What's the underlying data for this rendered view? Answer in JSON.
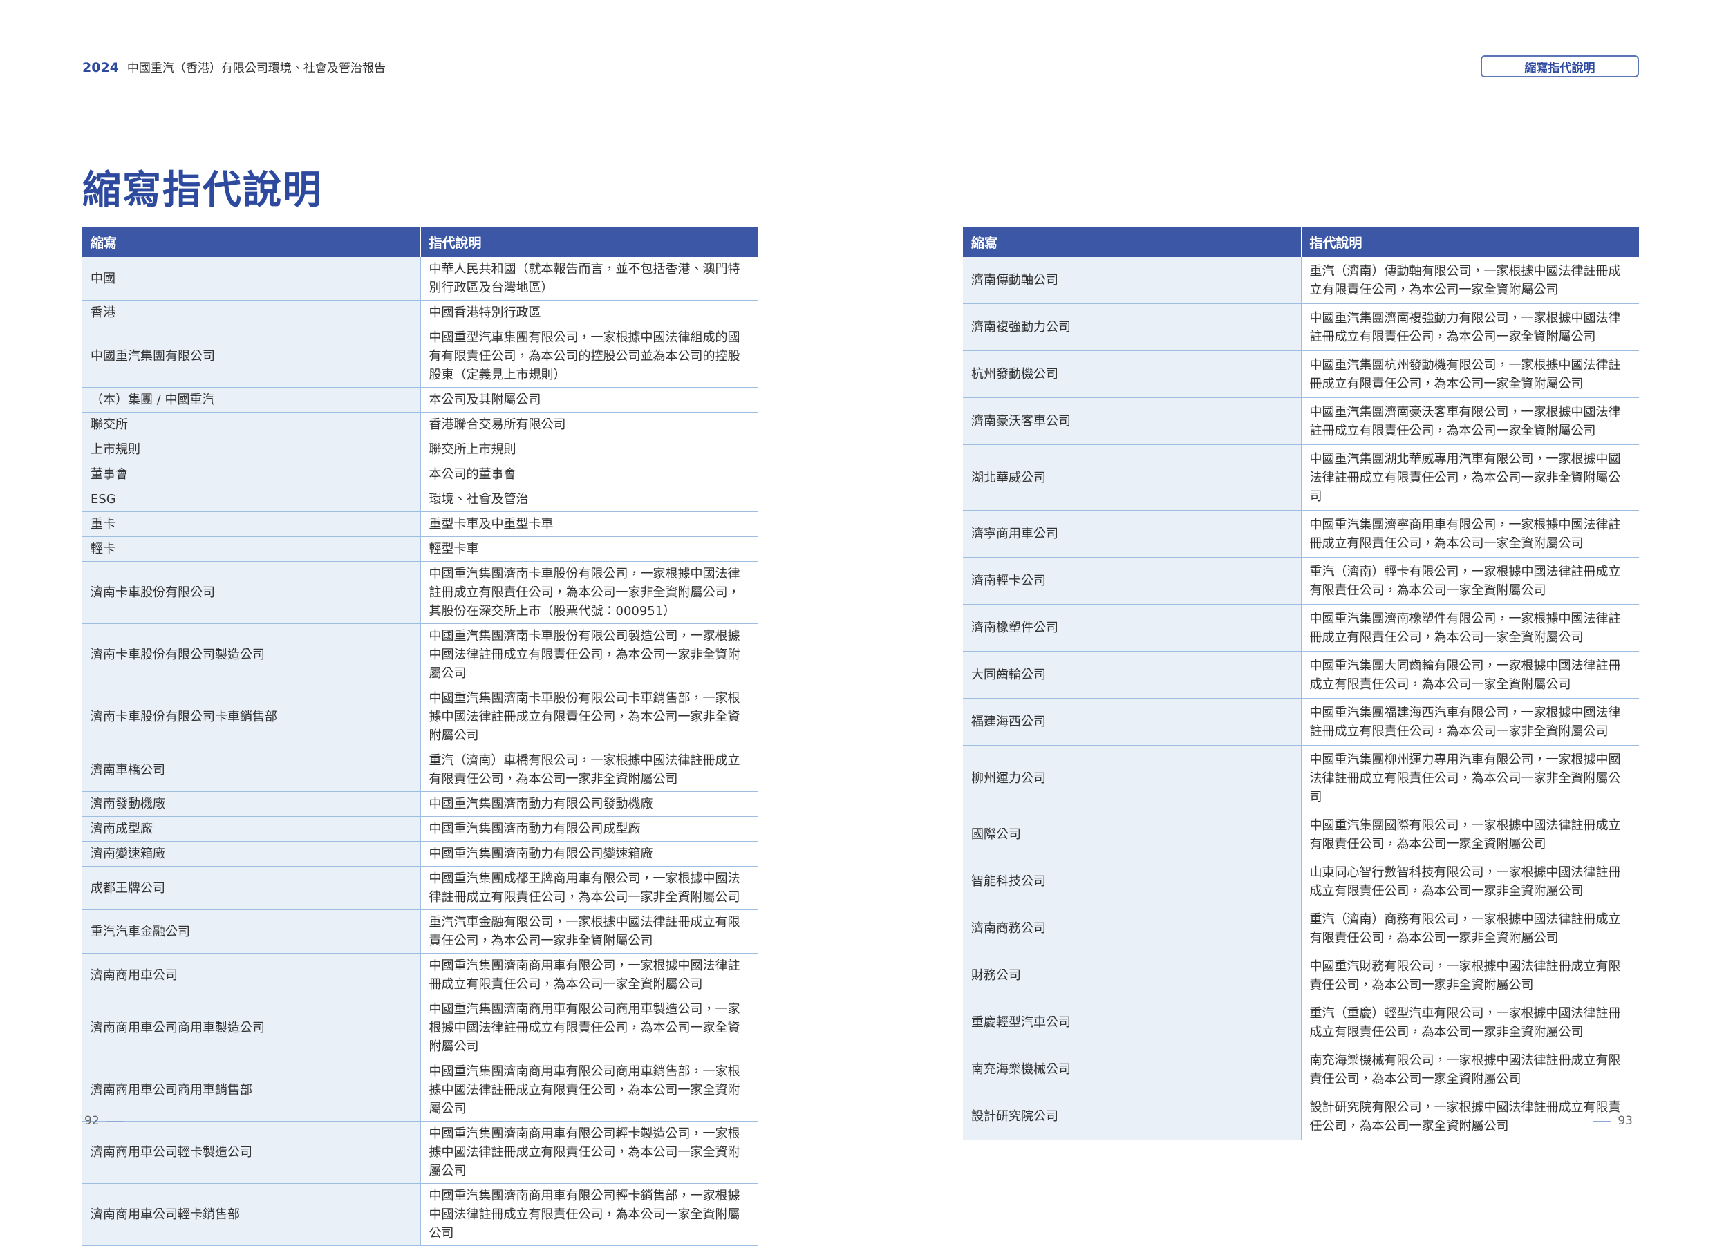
{
  "header": {
    "year": "2024",
    "report_title": "中國重汽（香港）有限公司環境、社會及管治報告",
    "tab": "縮寫指代說明"
  },
  "title": "縮寫指代說明",
  "left_table": {
    "columns": [
      "縮寫",
      "指代說明"
    ],
    "rows": [
      [
        "中國",
        "中華人民共和國（就本報告而言，並不包括香港、澳門特別行政區及台灣地區）"
      ],
      [
        "香港",
        "中國香港特別行政區"
      ],
      [
        "中國重汽集團有限公司",
        "中國重型汽車集團有限公司，一家根據中國法律組成的國有有限責任公司，為本公司的控股公司並為本公司的控股股東（定義見上市規則）"
      ],
      [
        "（本）集團 / 中國重汽",
        "本公司及其附屬公司"
      ],
      [
        "聯交所",
        "香港聯合交易所有限公司"
      ],
      [
        "上市規則",
        "聯交所上市規則"
      ],
      [
        "董事會",
        "本公司的董事會"
      ],
      [
        "ESG",
        "環境、社會及管治"
      ],
      [
        "重卡",
        "重型卡車及中重型卡車"
      ],
      [
        "輕卡",
        "輕型卡車"
      ],
      [
        "濟南卡車股份有限公司",
        "中國重汽集團濟南卡車股份有限公司，一家根據中國法律註冊成立有限責任公司，為本公司一家非全資附屬公司，其股份在深交所上市（股票代號：000951）"
      ],
      [
        "濟南卡車股份有限公司製造公司",
        "中國重汽集團濟南卡車股份有限公司製造公司，一家根據中國法律註冊成立有限責任公司，為本公司一家非全資附屬公司"
      ],
      [
        "濟南卡車股份有限公司卡車銷售部",
        "中國重汽集團濟南卡車股份有限公司卡車銷售部，一家根據中國法律註冊成立有限責任公司，為本公司一家非全資附屬公司"
      ],
      [
        "濟南車橋公司",
        "重汽（濟南）車橋有限公司，一家根據中國法律註冊成立有限責任公司，為本公司一家非全資附屬公司"
      ],
      [
        "濟南發動機廠",
        "中國重汽集團濟南動力有限公司發動機廠"
      ],
      [
        "濟南成型廠",
        "中國重汽集團濟南動力有限公司成型廠"
      ],
      [
        "濟南變速箱廠",
        "中國重汽集團濟南動力有限公司變速箱廠"
      ],
      [
        "成都王牌公司",
        "中國重汽集團成都王牌商用車有限公司，一家根據中國法律註冊成立有限責任公司，為本公司一家非全資附屬公司"
      ],
      [
        "重汽汽車金融公司",
        "重汽汽車金融有限公司，一家根據中國法律註冊成立有限責任公司，為本公司一家非全資附屬公司"
      ],
      [
        "濟南商用車公司",
        "中國重汽集團濟南商用車有限公司，一家根據中國法律註冊成立有限責任公司，為本公司一家全資附屬公司"
      ],
      [
        "濟南商用車公司商用車製造公司",
        "中國重汽集團濟南商用車有限公司商用車製造公司，一家根據中國法律註冊成立有限責任公司，為本公司一家全資附屬公司"
      ],
      [
        "濟南商用車公司商用車銷售部",
        "中國重汽集團濟南商用車有限公司商用車銷售部，一家根據中國法律註冊成立有限責任公司，為本公司一家全資附屬公司"
      ],
      [
        "濟南商用車公司輕卡製造公司",
        "中國重汽集團濟南商用車有限公司輕卡製造公司，一家根據中國法律註冊成立有限責任公司，為本公司一家全資附屬公司"
      ],
      [
        "濟南商用車公司輕卡銷售部",
        "中國重汽集團濟南商用車有限公司輕卡銷售部，一家根據中國法律註冊成立有限責任公司，為本公司一家全資附屬公司"
      ]
    ]
  },
  "right_table": {
    "columns": [
      "縮寫",
      "指代說明"
    ],
    "rows": [
      [
        "濟南傳動軸公司",
        "重汽（濟南）傳動軸有限公司，一家根據中國法律註冊成立有限責任公司，為本公司一家全資附屬公司"
      ],
      [
        "濟南複強動力公司",
        "中國重汽集團濟南複強動力有限公司，一家根據中國法律註冊成立有限責任公司，為本公司一家全資附屬公司"
      ],
      [
        "杭州發動機公司",
        "中國重汽集團杭州發動機有限公司，一家根據中國法律註冊成立有限責任公司，為本公司一家全資附屬公司"
      ],
      [
        "濟南豪沃客車公司",
        "中國重汽集團濟南豪沃客車有限公司，一家根據中國法律註冊成立有限責任公司，為本公司一家全資附屬公司"
      ],
      [
        "湖北華威公司",
        "中國重汽集團湖北華威專用汽車有限公司，一家根據中國法律註冊成立有限責任公司，為本公司一家非全資附屬公司"
      ],
      [
        "濟寧商用車公司",
        "中國重汽集團濟寧商用車有限公司，一家根據中國法律註冊成立有限責任公司，為本公司一家全資附屬公司"
      ],
      [
        "濟南輕卡公司",
        "重汽（濟南）輕卡有限公司，一家根據中國法律註冊成立有限責任公司，為本公司一家全資附屬公司"
      ],
      [
        "濟南橡塑件公司",
        "中國重汽集團濟南橡塑件有限公司，一家根據中國法律註冊成立有限責任公司，為本公司一家全資附屬公司"
      ],
      [
        "大同齒輪公司",
        "中國重汽集團大同齒輪有限公司，一家根據中國法律註冊成立有限責任公司，為本公司一家全資附屬公司"
      ],
      [
        "福建海西公司",
        "中國重汽集團福建海西汽車有限公司，一家根據中國法律註冊成立有限責任公司，為本公司一家非全資附屬公司"
      ],
      [
        "柳州運力公司",
        "中國重汽集團柳州運力專用汽車有限公司，一家根據中國法律註冊成立有限責任公司，為本公司一家非全資附屬公司"
      ],
      [
        "國際公司",
        "中國重汽集團國際有限公司，一家根據中國法律註冊成立有限責任公司，為本公司一家全資附屬公司"
      ],
      [
        "智能科技公司",
        "山東同心智行數智科技有限公司，一家根據中國法律註冊成立有限責任公司，為本公司一家非全資附屬公司"
      ],
      [
        "濟南商務公司",
        "重汽（濟南）商務有限公司，一家根據中國法律註冊成立有限責任公司，為本公司一家非全資附屬公司"
      ],
      [
        "財務公司",
        "中國重汽財務有限公司，一家根據中國法律註冊成立有限責任公司，為本公司一家非全資附屬公司"
      ],
      [
        "重慶輕型汽車公司",
        "重汽（重慶）輕型汽車有限公司，一家根據中國法律註冊成立有限責任公司，為本公司一家非全資附屬公司"
      ],
      [
        "南充海樂機械公司",
        "南充海樂機械有限公司，一家根據中國法律註冊成立有限責任公司，為本公司一家全資附屬公司"
      ],
      [
        "設計研究院公司",
        "設計研究院有限公司，一家根據中國法律註冊成立有限責任公司，為本公司一家全資附屬公司"
      ]
    ]
  },
  "page_numbers": {
    "left": "92",
    "right": "93"
  }
}
